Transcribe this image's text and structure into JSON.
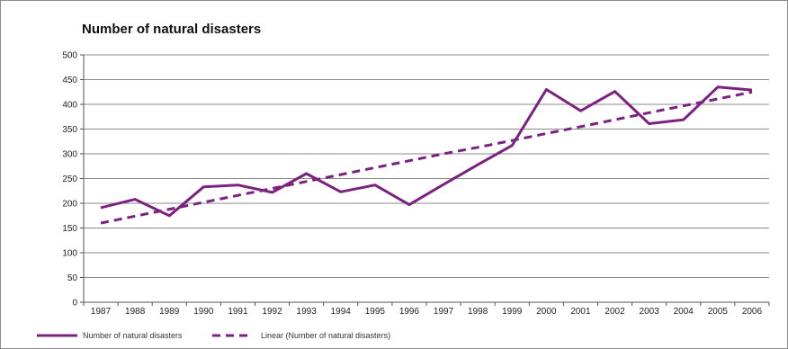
{
  "chart_data": {
    "type": "line",
    "title": "Number of natural disasters",
    "xlabel": "",
    "ylabel": "",
    "ylim": [
      0,
      500
    ],
    "yticks": [
      "0",
      "50",
      "100",
      "150",
      "200",
      "250",
      "300",
      "350",
      "400",
      "450",
      "500"
    ],
    "categories": [
      "1987",
      "1988",
      "1989",
      "1990",
      "1991",
      "1992",
      "1993",
      "1994",
      "1995",
      "1996",
      "1997",
      "1998",
      "1999",
      "2000",
      "2001",
      "2002",
      "2003",
      "2004",
      "2005",
      "2006"
    ],
    "series": [
      {
        "name": "Number of natural disasters",
        "style": "solid",
        "color": "#7b2281",
        "values": [
          191,
          208,
          175,
          233,
          237,
          222,
          260,
          223,
          237,
          197,
          238,
          278,
          317,
          430,
          387,
          426,
          361,
          369,
          435,
          429
        ]
      },
      {
        "name": "Linear (Number of natural disasters)",
        "style": "dashed",
        "color": "#7b2281",
        "values": [
          160,
          174,
          188,
          202,
          216,
          230,
          244,
          258,
          272,
          286,
          300,
          313,
          327,
          341,
          355,
          369,
          383,
          397,
          411,
          425
        ]
      }
    ],
    "grid": true,
    "legend_position": "bottom-left"
  }
}
